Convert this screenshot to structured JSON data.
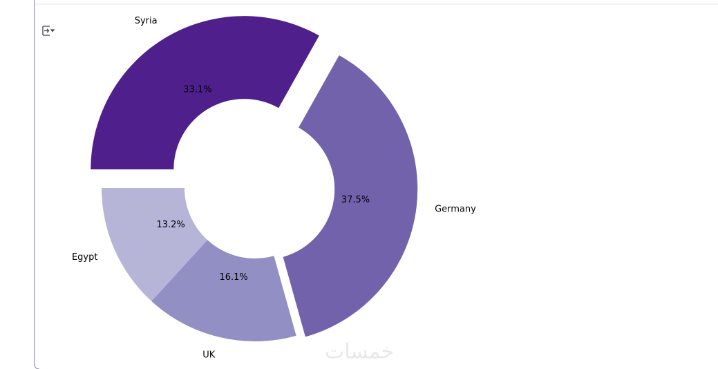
{
  "chart_data": {
    "type": "donut",
    "categories": [
      "Syria",
      "Germany",
      "UK",
      "Egypt"
    ],
    "values": [
      33.1,
      37.5,
      16.1,
      13.2
    ],
    "value_labels": [
      "33.1%",
      "37.5%",
      "16.1%",
      "13.2%"
    ],
    "colors": [
      "#4f1f8c",
      "#7262ab",
      "#918fc3",
      "#b6b5d8"
    ],
    "explode": [
      0.14,
      0.06,
      0,
      0
    ],
    "start_angle": 180,
    "clockwise": true,
    "watermark": "خمسات"
  }
}
